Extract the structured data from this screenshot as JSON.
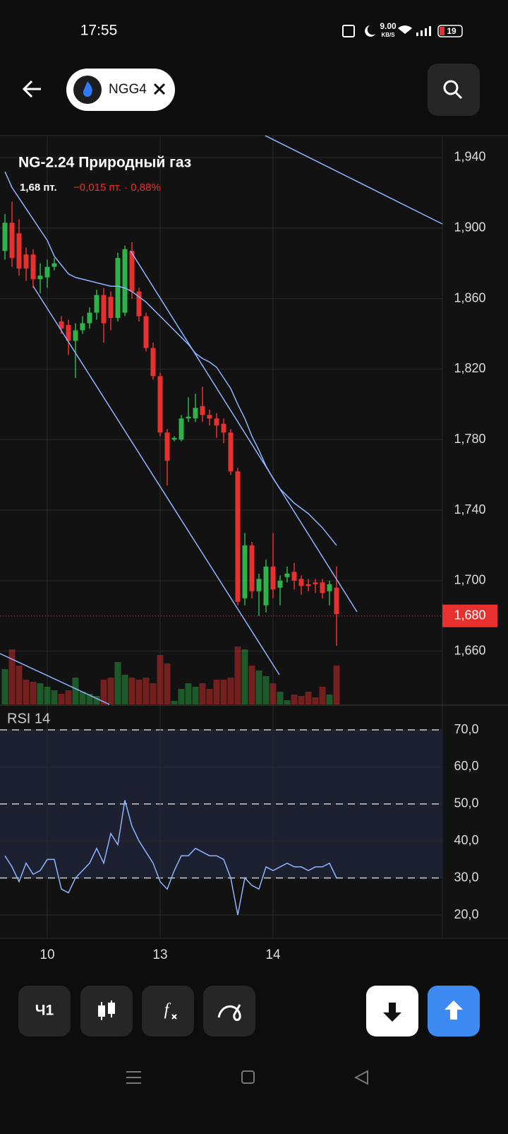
{
  "status": {
    "time": "17:55",
    "speed": "9.00",
    "speed_unit": "KB/S",
    "battery": "19"
  },
  "header": {
    "ticker": "NGG4"
  },
  "instrument": {
    "title": "NG-2.24 Природный газ",
    "price": "1,68 пт.",
    "change": "−0,015 пт. · 0,88%"
  },
  "chart_data": [
    {
      "type": "candlestick",
      "ylim": [
        1.6298,
        1.9524
      ],
      "yticks": [
        {
          "value": 1.94,
          "label": "1,940"
        },
        {
          "value": 1.9,
          "label": "1,900"
        },
        {
          "value": 1.86,
          "label": "1,860"
        },
        {
          "value": 1.82,
          "label": "1,820"
        },
        {
          "value": 1.78,
          "label": "1,780"
        },
        {
          "value": 1.74,
          "label": "1,740"
        },
        {
          "value": 1.7,
          "label": "1,700"
        },
        {
          "value": 1.66,
          "label": "1,660"
        }
      ],
      "last_price": {
        "value": 1.68,
        "label": "1,680"
      },
      "grid": true,
      "up_color": "#2fb24a",
      "down_color": "#e8312f",
      "ma_color": "#8fb4ff",
      "open": [
        1.887,
        1.903,
        1.897,
        1.885,
        1.885,
        1.871,
        1.872,
        1.878,
        1.847,
        1.845,
        1.836,
        1.842,
        1.846,
        1.852,
        1.862,
        1.861,
        1.849,
        1.852,
        1.887,
        1.864,
        1.85,
        1.832,
        1.816,
        1.784,
        1.78,
        1.78,
        1.792,
        1.792,
        1.799,
        1.794,
        1.792,
        1.789,
        1.784,
        1.762,
        1.69,
        1.72,
        1.694,
        1.686,
        1.708,
        1.696,
        1.702,
        1.705,
        1.701,
        1.698,
        1.699,
        1.699,
        1.694,
        1.696
      ],
      "high": [
        1.908,
        1.915,
        1.905,
        1.889,
        1.888,
        1.88,
        1.882,
        1.883,
        1.85,
        1.848,
        1.846,
        1.85,
        1.855,
        1.865,
        1.866,
        1.864,
        1.886,
        1.89,
        1.892,
        1.866,
        1.852,
        1.835,
        1.818,
        1.786,
        1.782,
        1.794,
        1.804,
        1.806,
        1.81,
        1.797,
        1.795,
        1.792,
        1.786,
        1.764,
        1.727,
        1.722,
        1.704,
        1.712,
        1.727,
        1.703,
        1.708,
        1.71,
        1.703,
        1.701,
        1.701,
        1.701,
        1.7,
        1.708
      ],
      "low": [
        1.882,
        1.878,
        1.873,
        1.87,
        1.866,
        1.863,
        1.866,
        1.876,
        1.84,
        1.828,
        1.815,
        1.84,
        1.843,
        1.848,
        1.835,
        1.842,
        1.847,
        1.85,
        1.86,
        1.847,
        1.83,
        1.814,
        1.782,
        1.754,
        1.779,
        1.779,
        1.79,
        1.79,
        1.79,
        1.788,
        1.781,
        1.778,
        1.76,
        1.686,
        1.686,
        1.69,
        1.68,
        1.682,
        1.69,
        1.686,
        1.699,
        1.695,
        1.692,
        1.694,
        1.693,
        1.69,
        1.686,
        1.663
      ],
      "close": [
        1.903,
        1.883,
        1.877,
        1.877,
        1.871,
        1.873,
        1.878,
        1.88,
        1.843,
        1.836,
        1.842,
        1.846,
        1.852,
        1.862,
        1.846,
        1.849,
        1.883,
        1.888,
        1.864,
        1.85,
        1.832,
        1.816,
        1.784,
        1.768,
        1.781,
        1.792,
        1.793,
        1.798,
        1.794,
        1.792,
        1.788,
        1.784,
        1.762,
        1.688,
        1.72,
        1.694,
        1.701,
        1.708,
        1.695,
        1.7,
        1.704,
        1.7,
        1.697,
        1.697,
        1.698,
        1.693,
        1.698,
        1.681
      ],
      "volume": [
        50,
        78,
        55,
        35,
        32,
        30,
        25,
        20,
        15,
        20,
        38,
        18,
        15,
        12,
        35,
        38,
        60,
        42,
        38,
        35,
        38,
        30,
        70,
        58,
        5,
        22,
        30,
        25,
        30,
        22,
        35,
        35,
        38,
        82,
        78,
        55,
        48,
        40,
        30,
        18,
        6,
        14,
        12,
        18,
        10,
        25,
        14,
        55
      ],
      "ma": [
        1.932,
        1.923,
        1.917,
        1.911,
        1.905,
        1.899,
        1.893,
        1.884,
        1.879,
        1.874,
        1.872,
        1.871,
        1.87,
        1.869,
        1.868,
        1.867,
        1.867,
        1.866,
        1.864,
        1.861,
        1.858,
        1.854,
        1.85,
        1.846,
        1.842,
        1.838,
        1.834,
        1.829,
        1.826,
        1.824,
        1.821,
        1.815,
        1.809,
        1.8,
        1.792,
        1.782,
        1.774,
        1.765,
        1.758,
        1.752,
        1.748,
        1.744,
        1.741,
        1.738,
        1.734,
        1.73,
        1.725,
        1.72
      ]
    },
    {
      "type": "line",
      "title": "RSI 14",
      "color": "#8fb4ff",
      "ylim": [
        13.9,
        76.3
      ],
      "yticks": [
        {
          "value": 70,
          "label": "70,0"
        },
        {
          "value": 60,
          "label": "60,0"
        },
        {
          "value": 50,
          "label": "50,0"
        },
        {
          "value": 40,
          "label": "40,0"
        },
        {
          "value": 30,
          "label": "30,0"
        },
        {
          "value": 20,
          "label": "20,0"
        }
      ],
      "levels": [
        70,
        50,
        30
      ],
      "band": [
        30,
        70
      ],
      "grid": true,
      "categories": [
        null,
        null,
        null,
        null,
        null,
        null,
        "10",
        null,
        null,
        null,
        null,
        null,
        null,
        null,
        null,
        null,
        null,
        null,
        null,
        null,
        null,
        null,
        "13",
        null,
        null,
        null,
        null,
        null,
        null,
        null,
        null,
        null,
        null,
        null,
        null,
        null,
        null,
        null,
        "14",
        null,
        null,
        null,
        null,
        null,
        null,
        null,
        null,
        null
      ],
      "values": [
        36,
        33,
        29,
        34,
        31,
        32,
        35,
        35,
        27,
        26,
        30,
        32,
        34,
        38,
        34,
        42,
        39,
        51,
        44,
        40,
        37,
        34,
        29,
        27,
        32,
        36,
        36,
        38,
        37,
        36,
        36,
        35,
        30,
        20,
        30,
        28,
        27,
        33,
        32,
        33,
        34,
        33,
        33,
        32,
        33,
        33,
        34,
        30
      ]
    }
  ],
  "toolbar": {
    "timeframe": "Ч1"
  }
}
